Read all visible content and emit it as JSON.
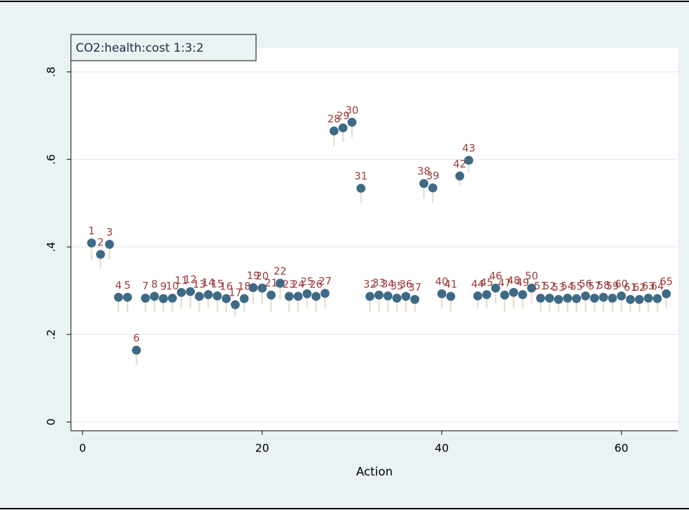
{
  "chart_data": {
    "type": "spike-scatter",
    "title": "CO2:health:cost 1:3:2",
    "x_label": "Action",
    "x": [
      1,
      2,
      3,
      4,
      5,
      6,
      7,
      8,
      9,
      10,
      11,
      12,
      13,
      14,
      15,
      16,
      17,
      18,
      19,
      20,
      21,
      22,
      23,
      24,
      25,
      26,
      27,
      28,
      29,
      30,
      31,
      32,
      33,
      34,
      35,
      36,
      37,
      38,
      39,
      40,
      41,
      42,
      43,
      44,
      45,
      46,
      47,
      48,
      49,
      50,
      51,
      52,
      53,
      54,
      55,
      56,
      57,
      58,
      59,
      60,
      61,
      62,
      63,
      64,
      65
    ],
    "values": [
      0.409,
      0.383,
      0.406,
      0.285,
      0.285,
      0.164,
      0.283,
      0.287,
      0.282,
      0.283,
      0.296,
      0.298,
      0.287,
      0.291,
      0.288,
      0.282,
      0.268,
      0.282,
      0.307,
      0.306,
      0.29,
      0.317,
      0.287,
      0.287,
      0.293,
      0.287,
      0.294,
      0.665,
      0.672,
      0.685,
      0.534,
      0.287,
      0.29,
      0.288,
      0.283,
      0.287,
      0.28,
      0.545,
      0.535,
      0.293,
      0.287,
      0.562,
      0.598,
      0.288,
      0.291,
      0.306,
      0.29,
      0.296,
      0.291,
      0.306,
      0.283,
      0.283,
      0.28,
      0.283,
      0.282,
      0.288,
      0.283,
      0.285,
      0.283,
      0.288,
      0.28,
      0.28,
      0.283,
      0.282,
      0.293
    ],
    "low": [
      0.37,
      0.35,
      0.37,
      0.25,
      0.25,
      0.13,
      0.25,
      0.25,
      0.25,
      0.25,
      0.26,
      0.26,
      0.25,
      0.26,
      0.25,
      0.25,
      0.24,
      0.25,
      0.27,
      0.27,
      0.25,
      0.28,
      0.25,
      0.25,
      0.26,
      0.25,
      0.26,
      0.63,
      0.64,
      0.65,
      0.5,
      0.25,
      0.25,
      0.25,
      0.25,
      0.25,
      0.25,
      0.51,
      0.5,
      0.26,
      0.25,
      0.54,
      0.57,
      0.26,
      0.26,
      0.27,
      0.25,
      0.26,
      0.26,
      0.27,
      0.25,
      0.25,
      0.25,
      0.25,
      0.25,
      0.25,
      0.25,
      0.25,
      0.25,
      0.25,
      0.25,
      0.25,
      0.25,
      0.25,
      0.26
    ],
    "marker_color": "#3e6a85",
    "label_color": "#9b3b3b",
    "spike_color": "#e9e2cf",
    "xlim": [
      -1.3,
      66.3
    ],
    "ylim": [
      -0.02,
      0.854
    ],
    "xticks": [
      0,
      20,
      40,
      60
    ],
    "yticks": [
      0,
      {
        "value": 0.2,
        "label": ".2"
      },
      {
        "value": 0.4,
        "label": ".4"
      },
      {
        "value": 0.6,
        "label": ".6"
      },
      {
        "value": 0.8,
        "label": ".8"
      }
    ],
    "grid": true
  }
}
